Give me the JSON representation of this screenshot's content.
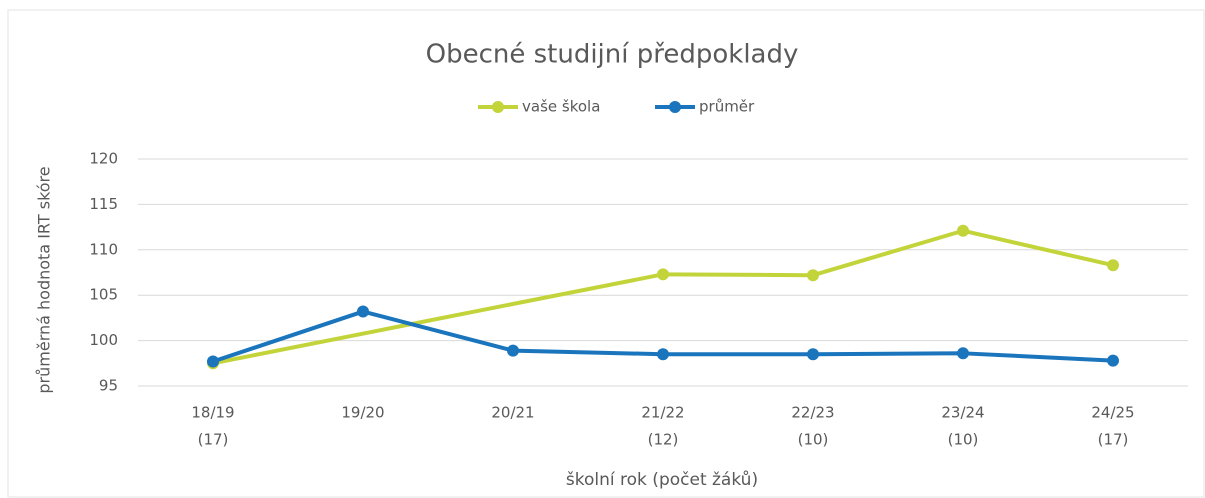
{
  "chart_data": {
    "type": "line",
    "title": "Obecné studijní předpoklady",
    "x_label": "školní rok (počet žáků)",
    "y_label": "průměrná hodnota IRT skóre",
    "categories": [
      "18/19",
      "19/20",
      "20/21",
      "21/22",
      "22/23",
      "23/24",
      "24/25"
    ],
    "category_counts": [
      "(17)",
      null,
      null,
      "(12)",
      "(10)",
      "(10)",
      "(17)"
    ],
    "series": [
      {
        "name": "vaše škola",
        "color": "#c3d43b",
        "values": [
          97.5,
          null,
          null,
          107.3,
          107.2,
          112.1,
          108.3
        ]
      },
      {
        "name": "průměr",
        "color": "#1a75bd",
        "values": [
          97.7,
          103.2,
          98.9,
          98.5,
          98.5,
          98.6,
          97.8
        ]
      }
    ],
    "span_gaps": true,
    "ylim": [
      95,
      120
    ],
    "yticks": [
      95,
      100,
      105,
      110,
      115,
      120
    ],
    "grid": true,
    "legend": "top"
  }
}
